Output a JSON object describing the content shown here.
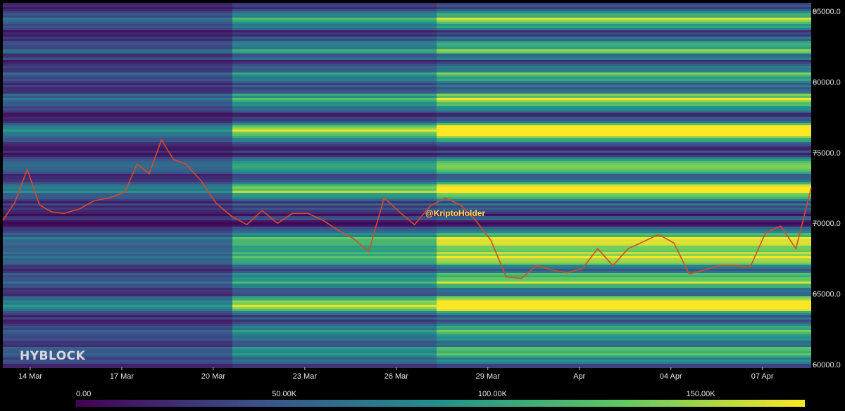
{
  "chart_data": {
    "type": "heatmap",
    "title": "",
    "xlabel": "",
    "ylabel": "",
    "x_ticks": [
      "14 Mar",
      "17 Mar",
      "20 Mar",
      "23 Mar",
      "26 Mar",
      "29 Mar",
      "Apr",
      "04 Apr",
      "07 Apr"
    ],
    "y_ticks": [
      "60000.0",
      "65000.0",
      "70000.0",
      "75000.0",
      "80000.0",
      "85000.0"
    ],
    "y_tick_values": [
      60000,
      65000,
      70000,
      75000,
      80000,
      85000
    ],
    "ylim": [
      59800,
      85600
    ],
    "colorbar": {
      "ticks": [
        "0.00",
        "50.00K",
        "100.00K",
        "150.00K"
      ],
      "tick_values": [
        0,
        50000,
        100000,
        150000
      ],
      "range": [
        0,
        175000
      ],
      "colors": [
        "#440154",
        "#3b528b",
        "#21918c",
        "#5ec962",
        "#fde725"
      ]
    },
    "brand_label": "HYBLOCK",
    "watermark": "@KriptoHolder",
    "price_series": {
      "name": "",
      "x_day_offset": [
        0,
        0.4,
        0.8,
        1.2,
        1.6,
        2.0,
        2.5,
        3.0,
        3.5,
        4.0,
        4.4,
        4.8,
        5.2,
        5.6,
        6.0,
        6.5,
        7.0,
        7.5,
        8.0,
        8.5,
        9.0,
        9.5,
        10.0,
        10.5,
        11.0,
        11.5,
        12.0,
        12.5,
        13.0,
        13.5,
        14.0,
        14.5,
        15.0,
        15.5,
        16.0,
        16.5,
        17.0,
        17.5,
        18.0,
        18.5,
        19.0,
        19.5,
        20.0,
        20.5,
        21.0,
        21.5,
        22.0,
        22.5,
        23.0,
        23.5,
        24.0,
        24.5,
        25.0,
        25.5,
        26.0,
        26.5
      ],
      "values": [
        70200,
        71500,
        73800,
        71300,
        70800,
        70700,
        71000,
        71600,
        71800,
        72200,
        74200,
        73500,
        75900,
        74500,
        74200,
        73000,
        71400,
        70500,
        69900,
        70900,
        70000,
        70700,
        70700,
        70200,
        69500,
        68900,
        68000,
        71800,
        70800,
        69900,
        71200,
        71800,
        71300,
        70200,
        68800,
        66200,
        66100,
        67000,
        66700,
        66500,
        66800,
        68200,
        67000,
        68200,
        68700,
        69200,
        68600,
        66400,
        66700,
        67000,
        67000,
        66900,
        69300,
        69800,
        68200,
        72500
      ]
    },
    "heat_bands": [
      {
        "price": 84500,
        "value": 110000
      },
      {
        "price": 82500,
        "value": 95000
      },
      {
        "price": 80500,
        "value": 85000
      },
      {
        "price": 78800,
        "value": 120000
      },
      {
        "price": 76600,
        "value": 175000
      },
      {
        "price": 74000,
        "value": 90000
      },
      {
        "price": 72400,
        "value": 160000
      },
      {
        "price": 68700,
        "value": 165000
      },
      {
        "price": 67600,
        "value": 150000
      },
      {
        "price": 66000,
        "value": 130000
      },
      {
        "price": 64300,
        "value": 175000
      },
      {
        "price": 62500,
        "value": 100000
      },
      {
        "price": 61000,
        "value": 80000
      }
    ]
  }
}
